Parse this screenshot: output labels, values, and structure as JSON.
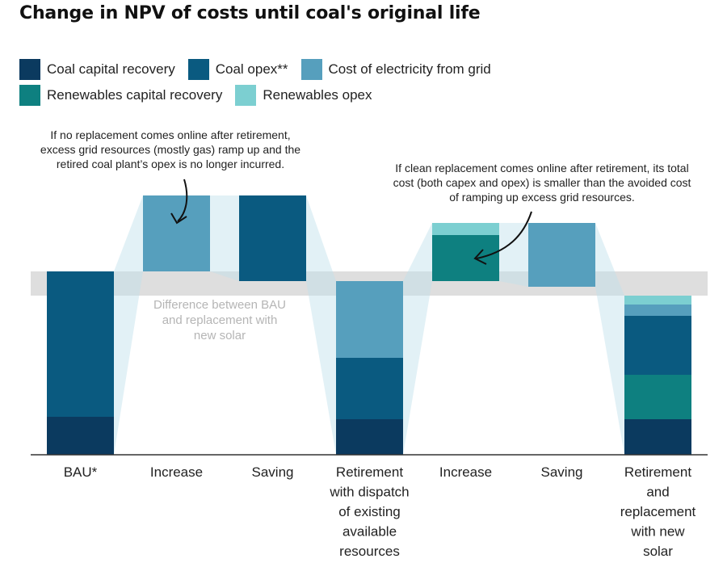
{
  "title": "Change in NPV of costs until coal's original life",
  "legend": [
    {
      "label": "Coal capital recovery",
      "color": "#0b3a5f",
      "icon": "swatch"
    },
    {
      "label": "Coal opex**",
      "color": "#0a5a80",
      "icon": "swatch"
    },
    {
      "label": "Cost of electricity from grid",
      "color": "#569fbd",
      "icon": "swatch"
    },
    {
      "label": "Renewables capital recovery",
      "color": "#0e8080",
      "icon": "swatch"
    },
    {
      "label": "Renewables opex",
      "color": "#7ccfd1",
      "icon": "swatch"
    }
  ],
  "annotations": {
    "left": [
      "If no replacement comes online after retirement,",
      "excess grid resources (mostly gas) ramp up and the",
      "retired coal plant’s opex is no longer incurred."
    ],
    "right": [
      "If clean replacement comes online after retirement, its total",
      "cost (both capex and opex) is smaller than the avoided cost",
      "of ramping up excess grid resources."
    ],
    "band": [
      "Difference between BAU",
      "and replacement with",
      "new solar"
    ]
  },
  "chart_data": {
    "type": "bar",
    "subtype": "waterfall",
    "y_axis": "not shown (relative units)",
    "categories": [
      [
        "BAU*"
      ],
      [
        "Increase"
      ],
      [
        "Saving"
      ],
      [
        "Retirement",
        "with dispatch",
        "of existing",
        "available",
        "resources"
      ],
      [
        "Increase"
      ],
      [
        "Saving"
      ],
      [
        "Retirement",
        "and",
        "replacement",
        "with new",
        "solar"
      ]
    ],
    "bars": [
      {
        "kind": "total",
        "segments": [
          {
            "series": "Coal capital recovery",
            "value": 47
          },
          {
            "series": "Coal opex**",
            "value": 180
          }
        ]
      },
      {
        "kind": "increase",
        "segments": [
          {
            "series": "Cost of electricity from grid",
            "value": 94
          }
        ]
      },
      {
        "kind": "saving",
        "segments": [
          {
            "series": "Coal opex**",
            "value": 106
          }
        ]
      },
      {
        "kind": "total",
        "segments": [
          {
            "series": "Coal capital recovery",
            "value": 44
          },
          {
            "series": "Coal opex**",
            "value": 76
          },
          {
            "series": "Cost of electricity from grid",
            "value": 95
          }
        ]
      },
      {
        "kind": "increase",
        "segments": [
          {
            "series": "Renewables capital recovery",
            "value": 57
          },
          {
            "series": "Renewables opex",
            "value": 15
          }
        ]
      },
      {
        "kind": "saving",
        "segments": [
          {
            "series": "Cost of electricity from grid",
            "value": 79
          }
        ]
      },
      {
        "kind": "total",
        "segments": [
          {
            "series": "Coal capital recovery",
            "value": 44
          },
          {
            "series": "Renewables capital recovery",
            "value": 55
          },
          {
            "series": "Coal opex**",
            "value": 73
          },
          {
            "series": "Cost of electricity from grid",
            "value": 14
          },
          {
            "series": "Renewables opex",
            "value": 11
          }
        ]
      }
    ],
    "highlight_band": {
      "label": "Difference between BAU and replacement with new solar",
      "from": 197,
      "to": 227
    },
    "grid": false,
    "legend_position": "top"
  }
}
